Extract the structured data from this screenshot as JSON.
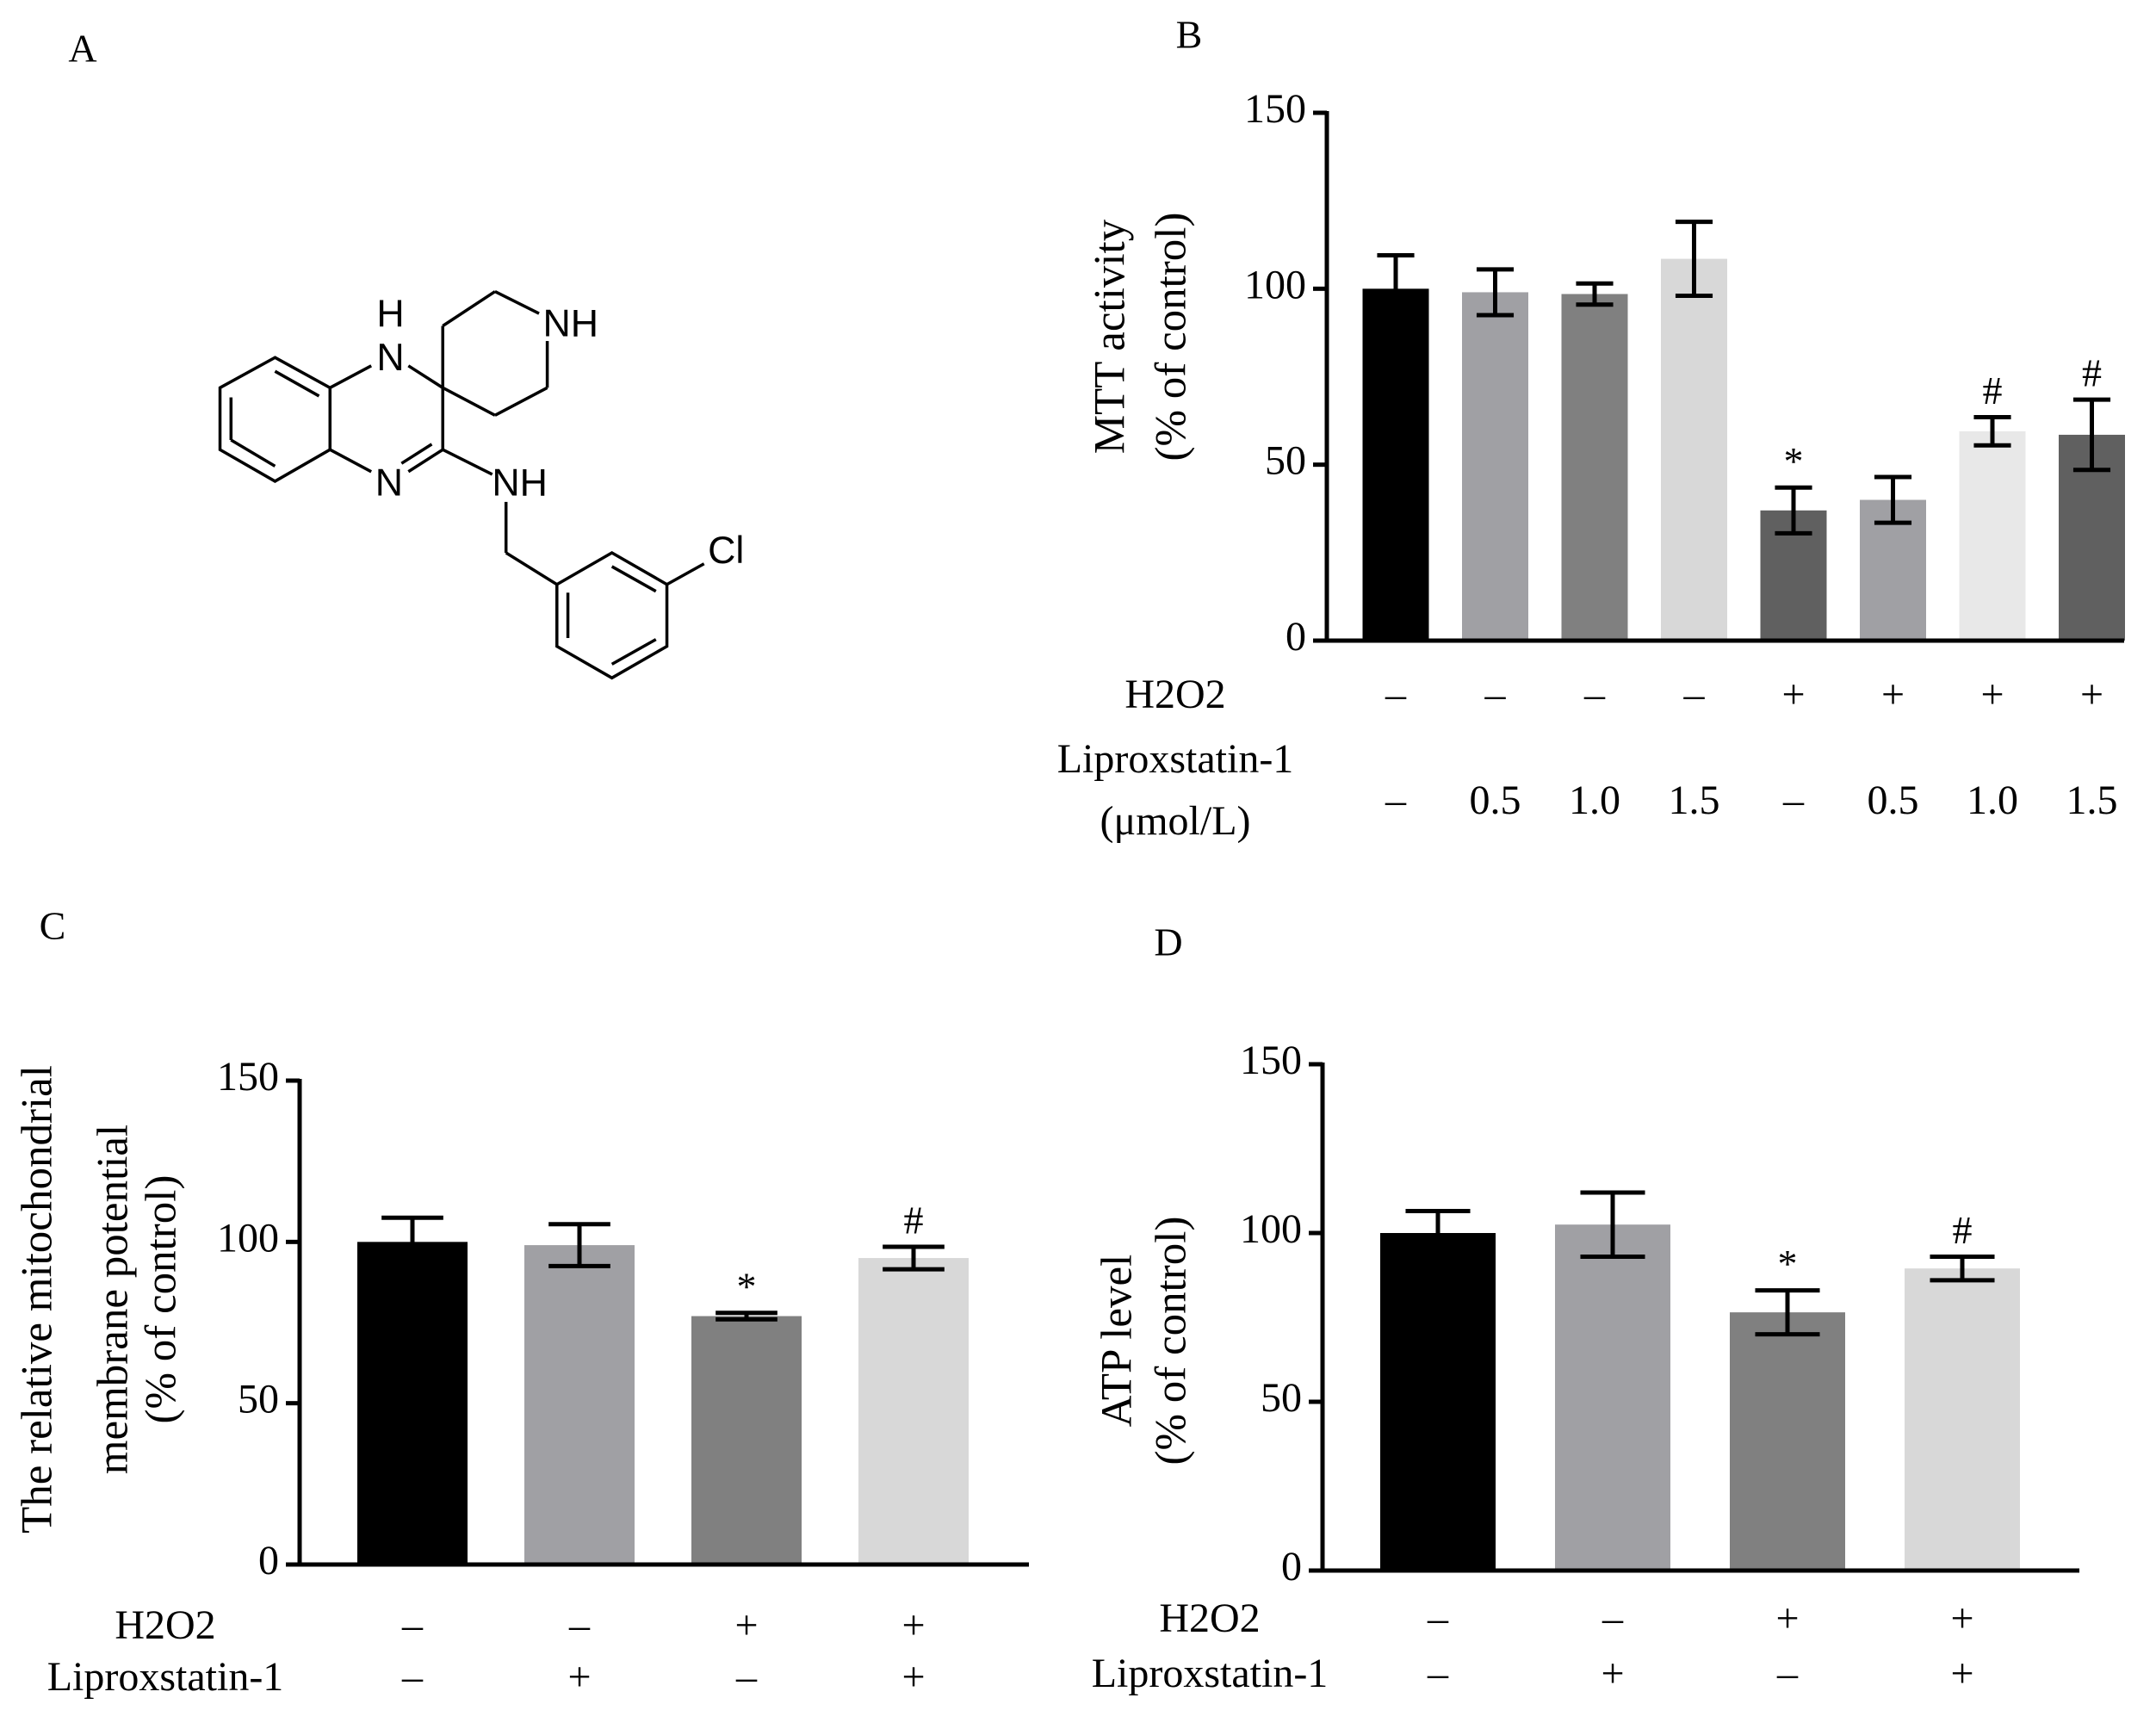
{
  "structure": {
    "label": "A",
    "atoms": [
      "H",
      "N",
      "NH",
      "N",
      "NH",
      "Cl"
    ]
  },
  "chart_data": [
    {
      "type": "bar",
      "panel": "B",
      "ylabel": [
        "MTT activity",
        "(% of control)"
      ],
      "ylim": [
        0,
        150
      ],
      "yticks": [
        0,
        50,
        100,
        150
      ],
      "values": [
        100,
        99,
        98.5,
        108.5,
        37,
        40,
        59.5,
        58.5
      ],
      "errors": [
        9.5,
        6.5,
        3,
        10.5,
        6.5,
        6.5,
        4,
        10
      ],
      "colors": [
        "#000000",
        "#a0a0a4",
        "#808080",
        "#d8d8d8",
        "#606060",
        "#a0a0a4",
        "#e8e8e8",
        "#606060"
      ],
      "annotations": [
        null,
        null,
        null,
        null,
        "*",
        null,
        "#",
        "#"
      ],
      "rows": [
        {
          "label": "H2O2",
          "values": [
            "–",
            "–",
            "–",
            "–",
            "+",
            "+",
            "+",
            "+"
          ]
        },
        {
          "label": "Liproxstatin-1",
          "sublabel": "(μmol/L)",
          "values": [
            "–",
            "0.5",
            "1.0",
            "1.5",
            "–",
            "0.5",
            "1.0",
            "1.5"
          ]
        }
      ]
    },
    {
      "type": "bar",
      "panel": "C",
      "ylabel": [
        "The relative mitochondrial",
        "membrane potential",
        "(% of control)"
      ],
      "ylim": [
        0,
        150
      ],
      "yticks": [
        0,
        50,
        100,
        150
      ],
      "values": [
        100,
        99,
        77,
        95
      ],
      "errors": [
        7.5,
        6.5,
        1,
        3.5
      ],
      "colors": [
        "#000000",
        "#a0a0a4",
        "#808080",
        "#d8d8d8"
      ],
      "annotations": [
        null,
        null,
        "*",
        "#"
      ],
      "rows": [
        {
          "label": "H2O2",
          "values": [
            "–",
            "–",
            "+",
            "+"
          ]
        },
        {
          "label": "Liproxstatin-1",
          "values": [
            "–",
            "+",
            "–",
            "+"
          ]
        }
      ]
    },
    {
      "type": "bar",
      "panel": "D",
      "ylabel": [
        "ATP level",
        "(% of control)"
      ],
      "ylim": [
        0,
        150
      ],
      "yticks": [
        0,
        50,
        100,
        150
      ],
      "values": [
        100,
        102.5,
        76.5,
        89.5
      ],
      "errors": [
        6.5,
        9.5,
        6.5,
        3.5
      ],
      "colors": [
        "#000000",
        "#a0a0a4",
        "#808080",
        "#d8d8d8"
      ],
      "annotations": [
        null,
        null,
        "*",
        "#"
      ],
      "rows": [
        {
          "label": "H2O2",
          "values": [
            "–",
            "–",
            "+",
            "+"
          ]
        },
        {
          "label": "Liproxstatin-1",
          "values": [
            "–",
            "+",
            "–",
            "+"
          ]
        }
      ]
    }
  ]
}
